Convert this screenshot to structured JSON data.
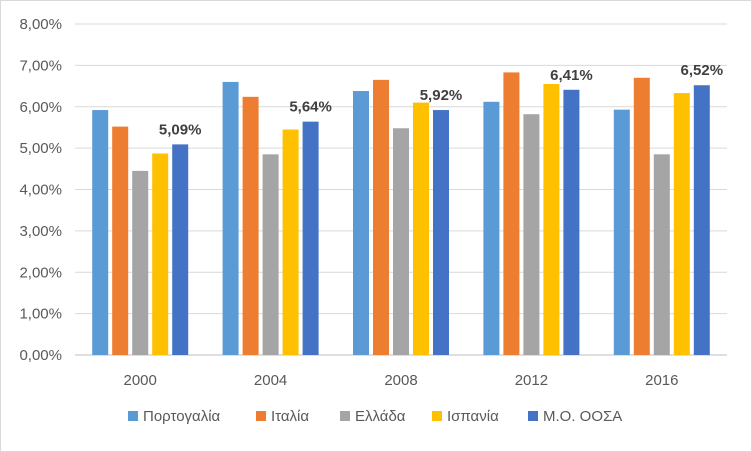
{
  "chart_data": {
    "type": "bar",
    "title": "",
    "xlabel": "",
    "ylabel": "",
    "ylim": [
      0,
      8
    ],
    "y_ticks": [
      "0,00%",
      "1,00%",
      "2,00%",
      "3,00%",
      "4,00%",
      "5,00%",
      "6,00%",
      "7,00%",
      "8,00%"
    ],
    "grid": true,
    "legend_position": "bottom",
    "categories": [
      "2000",
      "2004",
      "2008",
      "2012",
      "2016"
    ],
    "series": [
      {
        "name": "Πορτογαλία",
        "color": "#5b9bd5",
        "values": [
          5.92,
          6.6,
          6.38,
          6.12,
          5.93
        ]
      },
      {
        "name": "Ιταλία",
        "color": "#ed7d31",
        "values": [
          5.52,
          6.24,
          6.65,
          6.83,
          6.7
        ]
      },
      {
        "name": "Ελλάδα",
        "color": "#a5a5a5",
        "values": [
          4.45,
          4.85,
          5.48,
          5.82,
          4.85
        ]
      },
      {
        "name": "Ισπανία",
        "color": "#ffc000",
        "values": [
          4.87,
          5.45,
          6.1,
          6.55,
          6.33
        ]
      },
      {
        "name": "Μ.Ο. ΟΟΣΑ",
        "color": "#4472c4",
        "values": [
          5.09,
          5.64,
          5.92,
          6.41,
          6.52
        ],
        "data_labels": [
          "5,09%",
          "5,64%",
          "5,92%",
          "6,41%",
          "6,52%"
        ]
      }
    ]
  }
}
